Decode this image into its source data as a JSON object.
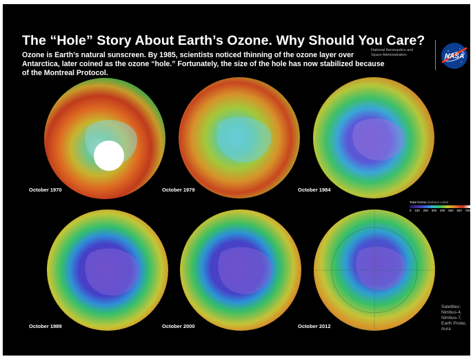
{
  "header": {
    "title": "The “Hole” Story About Earth’s Ozone. Why Should You Care?",
    "subtitle": "Ozone is Earth’s natural sunscreen. By 1985, scientists noticed thinning of the ozone layer over Antarctica, later coined as the ozone “hole.” Fortunately, the size of the hole has now stabilized because of the Montreal Protocol.",
    "agency_line1": "National Aeronautics and",
    "agency_line2": "Space Administration",
    "logo_text": "NASA"
  },
  "maps": [
    {
      "caption": "October 1970",
      "hole_level": "none",
      "missing_data_disc": true
    },
    {
      "caption": "October 1979",
      "hole_level": "slight",
      "missing_data_disc": false
    },
    {
      "caption": "October 1984",
      "hole_level": "moderate",
      "missing_data_disc": false
    },
    {
      "caption": "October 1989",
      "hole_level": "large",
      "missing_data_disc": false
    },
    {
      "caption": "October 2000",
      "hole_level": "large",
      "missing_data_disc": false
    },
    {
      "caption": "October 2012",
      "hole_level": "moderate",
      "missing_data_disc": false
    }
  ],
  "legend": {
    "title": "Total Ozone",
    "units": "(Dobson Units)",
    "ticks": [
      "0",
      "100",
      "200",
      "300",
      "400",
      "500",
      "600",
      "700"
    ]
  },
  "satellites": {
    "label": "Satellites:",
    "items": [
      "Nimbus-4,",
      "Nimbus-7,",
      "Earth Probe,",
      "Aura"
    ]
  },
  "colors": {
    "background": "#000000",
    "nasa_blue": "#0b3d91",
    "nasa_red": "#fc3d21"
  }
}
